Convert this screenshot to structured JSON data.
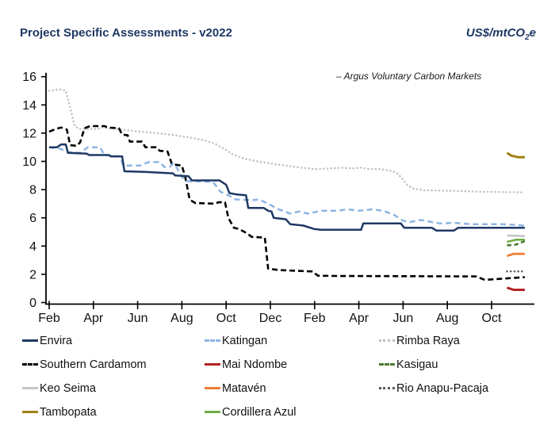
{
  "header": {
    "title": "Project Specific Assessments - v2022",
    "units_prefix": "US$/mtCO",
    "units_sub": "2",
    "units_suffix": "e"
  },
  "annotation": "– Argus Voluntary Carbon Markets",
  "chart_data": {
    "type": "line",
    "title": "Project Specific Assessments - v2022",
    "ylabel": "US$/mtCO2e",
    "ylim": [
      0,
      16
    ],
    "y_ticks": [
      0,
      2,
      4,
      6,
      8,
      10,
      12,
      14,
      16
    ],
    "x_unit": "months, Feb year1 through mid-Nov year2 (0 = first Feb)",
    "x_ticks": [
      {
        "pos": 0,
        "label": "Feb"
      },
      {
        "pos": 2,
        "label": "Apr"
      },
      {
        "pos": 4,
        "label": "Jun"
      },
      {
        "pos": 6,
        "label": "Aug"
      },
      {
        "pos": 8,
        "label": "Oct"
      },
      {
        "pos": 10,
        "label": "Dec"
      },
      {
        "pos": 12,
        "label": "Feb"
      },
      {
        "pos": 14,
        "label": "Apr"
      },
      {
        "pos": 16,
        "label": "Jun"
      },
      {
        "pos": 18,
        "label": "Aug"
      },
      {
        "pos": 20,
        "label": "Oct"
      }
    ],
    "grid": false,
    "legend_position": "bottom",
    "series": [
      {
        "name": "Rimba Raya",
        "color": "#BFBFBF",
        "style": "dotted",
        "width": 2.5,
        "points": [
          [
            0,
            15.0
          ],
          [
            0.5,
            15.1
          ],
          [
            0.75,
            15.0
          ],
          [
            0.95,
            13.8
          ],
          [
            1.15,
            12.5
          ],
          [
            1.35,
            12.3
          ],
          [
            2.2,
            12.3
          ],
          [
            2.4,
            12.4
          ],
          [
            3.1,
            12.3
          ],
          [
            3.8,
            12.15
          ],
          [
            4.5,
            12.05
          ],
          [
            5.2,
            11.95
          ],
          [
            5.9,
            11.8
          ],
          [
            6.5,
            11.65
          ],
          [
            7.0,
            11.5
          ],
          [
            7.5,
            11.25
          ],
          [
            7.9,
            10.9
          ],
          [
            8.3,
            10.5
          ],
          [
            8.8,
            10.2
          ],
          [
            9.4,
            10.0
          ],
          [
            10.0,
            9.85
          ],
          [
            10.7,
            9.7
          ],
          [
            11.4,
            9.55
          ],
          [
            12.1,
            9.45
          ],
          [
            12.7,
            9.5
          ],
          [
            13.2,
            9.55
          ],
          [
            13.7,
            9.5
          ],
          [
            14.1,
            9.55
          ],
          [
            14.5,
            9.45
          ],
          [
            15.0,
            9.45
          ],
          [
            15.4,
            9.35
          ],
          [
            15.7,
            9.2
          ],
          [
            15.95,
            8.8
          ],
          [
            16.2,
            8.3
          ],
          [
            16.5,
            8.05
          ],
          [
            17.0,
            7.95
          ],
          [
            18.5,
            7.9
          ],
          [
            19.5,
            7.85
          ],
          [
            21.5,
            7.8
          ]
        ]
      },
      {
        "name": "Southern Cardamom",
        "color": "#000000",
        "style": "dashed",
        "dash": "7 4",
        "width": 2.6,
        "points": [
          [
            0,
            12.1
          ],
          [
            0.3,
            12.3
          ],
          [
            0.55,
            12.4
          ],
          [
            0.8,
            12.25
          ],
          [
            0.95,
            11.15
          ],
          [
            1.25,
            11.1
          ],
          [
            1.4,
            11.35
          ],
          [
            1.6,
            12.35
          ],
          [
            1.85,
            12.5
          ],
          [
            2.5,
            12.5
          ],
          [
            2.65,
            12.4
          ],
          [
            3.15,
            12.35
          ],
          [
            3.3,
            11.9
          ],
          [
            3.55,
            11.85
          ],
          [
            3.65,
            11.4
          ],
          [
            4.2,
            11.4
          ],
          [
            4.35,
            11.0
          ],
          [
            4.85,
            11.0
          ],
          [
            5.0,
            10.75
          ],
          [
            5.35,
            10.7
          ],
          [
            5.55,
            9.8
          ],
          [
            6.0,
            9.7
          ],
          [
            6.15,
            8.9
          ],
          [
            6.35,
            7.3
          ],
          [
            6.6,
            7.05
          ],
          [
            7.5,
            7.0
          ],
          [
            7.65,
            7.1
          ],
          [
            7.95,
            7.1
          ],
          [
            8.1,
            6.0
          ],
          [
            8.35,
            5.3
          ],
          [
            8.6,
            5.2
          ],
          [
            8.95,
            4.9
          ],
          [
            9.15,
            4.65
          ],
          [
            9.75,
            4.6
          ],
          [
            9.9,
            2.4
          ],
          [
            10.4,
            2.3
          ],
          [
            11.9,
            2.2
          ],
          [
            12.15,
            1.9
          ],
          [
            13.0,
            1.88
          ],
          [
            19.3,
            1.85
          ],
          [
            19.7,
            1.6
          ],
          [
            20.6,
            1.7
          ],
          [
            21.5,
            1.8
          ]
        ]
      },
      {
        "name": "Katingan",
        "color": "#8EB4E2",
        "style": "dashed",
        "dash": "7 4.5",
        "width": 2.5,
        "points": [
          [
            0,
            11.0
          ],
          [
            0.5,
            10.9
          ],
          [
            0.85,
            10.65
          ],
          [
            1.4,
            10.6
          ],
          [
            1.75,
            11.0
          ],
          [
            2.3,
            11.0
          ],
          [
            2.5,
            10.45
          ],
          [
            3.2,
            10.35
          ],
          [
            3.35,
            9.7
          ],
          [
            4.1,
            9.7
          ],
          [
            4.5,
            9.95
          ],
          [
            5.0,
            9.95
          ],
          [
            5.2,
            9.6
          ],
          [
            5.45,
            9.6
          ],
          [
            5.6,
            9.85
          ],
          [
            5.75,
            9.6
          ],
          [
            6.0,
            8.9
          ],
          [
            6.2,
            8.6
          ],
          [
            7.4,
            8.55
          ],
          [
            7.75,
            7.85
          ],
          [
            8.1,
            7.6
          ],
          [
            8.45,
            7.3
          ],
          [
            9.2,
            7.25
          ],
          [
            9.5,
            7.3
          ],
          [
            9.9,
            7.0
          ],
          [
            10.3,
            6.65
          ],
          [
            10.9,
            6.3
          ],
          [
            11.3,
            6.45
          ],
          [
            11.7,
            6.3
          ],
          [
            12.3,
            6.5
          ],
          [
            13.0,
            6.5
          ],
          [
            13.5,
            6.6
          ],
          [
            14.0,
            6.5
          ],
          [
            14.6,
            6.6
          ],
          [
            15.1,
            6.5
          ],
          [
            15.6,
            6.2
          ],
          [
            16.0,
            5.8
          ],
          [
            16.3,
            5.7
          ],
          [
            16.8,
            5.85
          ],
          [
            17.3,
            5.7
          ],
          [
            17.7,
            5.6
          ],
          [
            18.3,
            5.65
          ],
          [
            19.0,
            5.55
          ],
          [
            20.5,
            5.55
          ],
          [
            21.5,
            5.45
          ]
        ]
      },
      {
        "name": "Envira",
        "color": "#1F3864",
        "style": "solid",
        "width": 2.5,
        "points": [
          [
            0,
            11.0
          ],
          [
            0.35,
            11.0
          ],
          [
            0.55,
            11.2
          ],
          [
            0.75,
            11.2
          ],
          [
            0.85,
            10.6
          ],
          [
            1.7,
            10.55
          ],
          [
            1.8,
            10.45
          ],
          [
            2.7,
            10.45
          ],
          [
            2.8,
            10.35
          ],
          [
            3.3,
            10.35
          ],
          [
            3.4,
            9.3
          ],
          [
            4.3,
            9.25
          ],
          [
            5.6,
            9.15
          ],
          [
            5.7,
            9.0
          ],
          [
            6.3,
            8.95
          ],
          [
            6.45,
            8.65
          ],
          [
            7.7,
            8.65
          ],
          [
            8.0,
            8.35
          ],
          [
            8.15,
            7.75
          ],
          [
            8.5,
            7.65
          ],
          [
            8.9,
            7.6
          ],
          [
            9.0,
            6.7
          ],
          [
            9.7,
            6.7
          ],
          [
            9.9,
            6.5
          ],
          [
            10.05,
            6.45
          ],
          [
            10.15,
            6.0
          ],
          [
            10.7,
            5.9
          ],
          [
            10.9,
            5.55
          ],
          [
            11.5,
            5.45
          ],
          [
            12.0,
            5.2
          ],
          [
            12.3,
            5.15
          ],
          [
            14.1,
            5.15
          ],
          [
            14.2,
            5.6
          ],
          [
            15.9,
            5.6
          ],
          [
            16.05,
            5.3
          ],
          [
            17.3,
            5.3
          ],
          [
            17.5,
            5.1
          ],
          [
            18.3,
            5.1
          ],
          [
            18.5,
            5.3
          ],
          [
            20.0,
            5.3
          ],
          [
            21.5,
            5.3
          ]
        ]
      },
      {
        "name": "Tambopata",
        "color": "#A08016",
        "style": "solid",
        "width": 3,
        "points": [
          [
            20.7,
            10.6
          ],
          [
            20.9,
            10.4
          ],
          [
            21.2,
            10.3
          ],
          [
            21.5,
            10.3
          ]
        ]
      },
      {
        "name": "Keo Seima",
        "color": "#C6C6C6",
        "style": "solid",
        "width": 2.6,
        "points": [
          [
            20.7,
            4.75
          ],
          [
            21.5,
            4.7
          ]
        ]
      },
      {
        "name": "Cordillera Azul",
        "color": "#6FAC46",
        "style": "solid",
        "width": 2.6,
        "points": [
          [
            20.7,
            4.3
          ],
          [
            21.1,
            4.45
          ],
          [
            21.5,
            4.45
          ]
        ]
      },
      {
        "name": "Kasigau",
        "color": "#4E7B30",
        "style": "dashed",
        "dash": "5.5 3.5",
        "width": 2.6,
        "points": [
          [
            20.7,
            4.05
          ],
          [
            21.1,
            4.1
          ],
          [
            21.5,
            4.35
          ]
        ]
      },
      {
        "name": "Matavén",
        "color": "#ED7D31",
        "style": "solid",
        "width": 2.8,
        "points": [
          [
            20.7,
            3.3
          ],
          [
            21.0,
            3.45
          ],
          [
            21.5,
            3.45
          ]
        ]
      },
      {
        "name": "Rio Anapu-Pacaja",
        "color": "#595959",
        "style": "dotted",
        "width": 2.5,
        "points": [
          [
            20.7,
            2.2
          ],
          [
            21.5,
            2.2
          ]
        ]
      },
      {
        "name": "Mai Ndombe",
        "color": "#B22222",
        "style": "solid",
        "width": 3,
        "points": [
          [
            20.7,
            1.05
          ],
          [
            21.0,
            0.9
          ],
          [
            21.5,
            0.9
          ]
        ]
      }
    ]
  },
  "legend": {
    "order": [
      "Envira",
      "Katingan",
      "Rimba Raya",
      "Southern Cardamom",
      "Mai Ndombe",
      "Kasigau",
      "Keo Seima",
      "Matavén",
      "Rio Anapu-Pacaja",
      "Tambopata",
      "Cordillera Azul"
    ]
  }
}
